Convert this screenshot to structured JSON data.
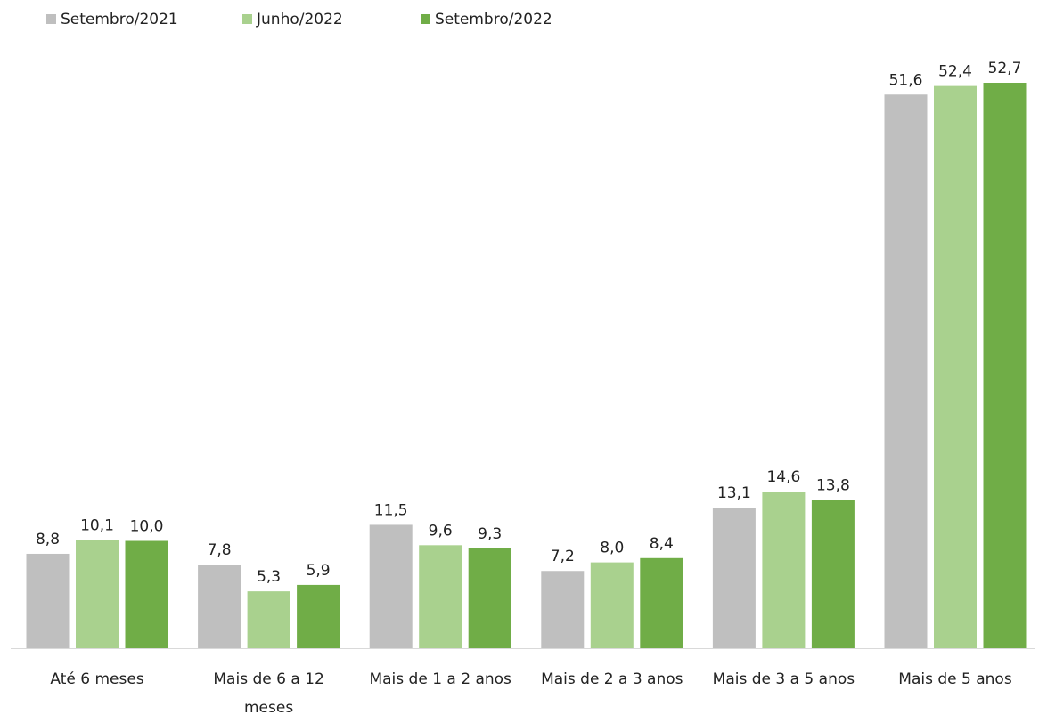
{
  "chart_data": {
    "type": "bar",
    "categories": [
      "Até 6 meses",
      "Mais de 6 a 12 meses",
      "Mais de 1 a 2 anos",
      "Mais de 2 a 3 anos",
      "Mais de 3 a 5 anos",
      "Mais de 5 anos"
    ],
    "series": [
      {
        "name": "Setembro/2021",
        "color": "#bfbfbf",
        "values": [
          8.8,
          7.8,
          11.5,
          7.2,
          13.1,
          51.6
        ],
        "value_labels": [
          "8,8",
          "7,8",
          "11,5",
          "7,2",
          "13,1",
          "51,6"
        ]
      },
      {
        "name": "Junho/2022",
        "color": "#a9d18e",
        "values": [
          10.1,
          5.3,
          9.6,
          8.0,
          14.6,
          52.4
        ],
        "value_labels": [
          "10,1",
          "5,3",
          "9,6",
          "8,0",
          "14,6",
          "52,4"
        ]
      },
      {
        "name": "Setembro/2022",
        "color": "#70ad47",
        "values": [
          10.0,
          5.9,
          9.3,
          8.4,
          13.8,
          52.7
        ],
        "value_labels": [
          "10,0",
          "5,9",
          "9,3",
          "8,4",
          "13,8",
          "52,7"
        ]
      }
    ],
    "legend": "top-left"
  }
}
